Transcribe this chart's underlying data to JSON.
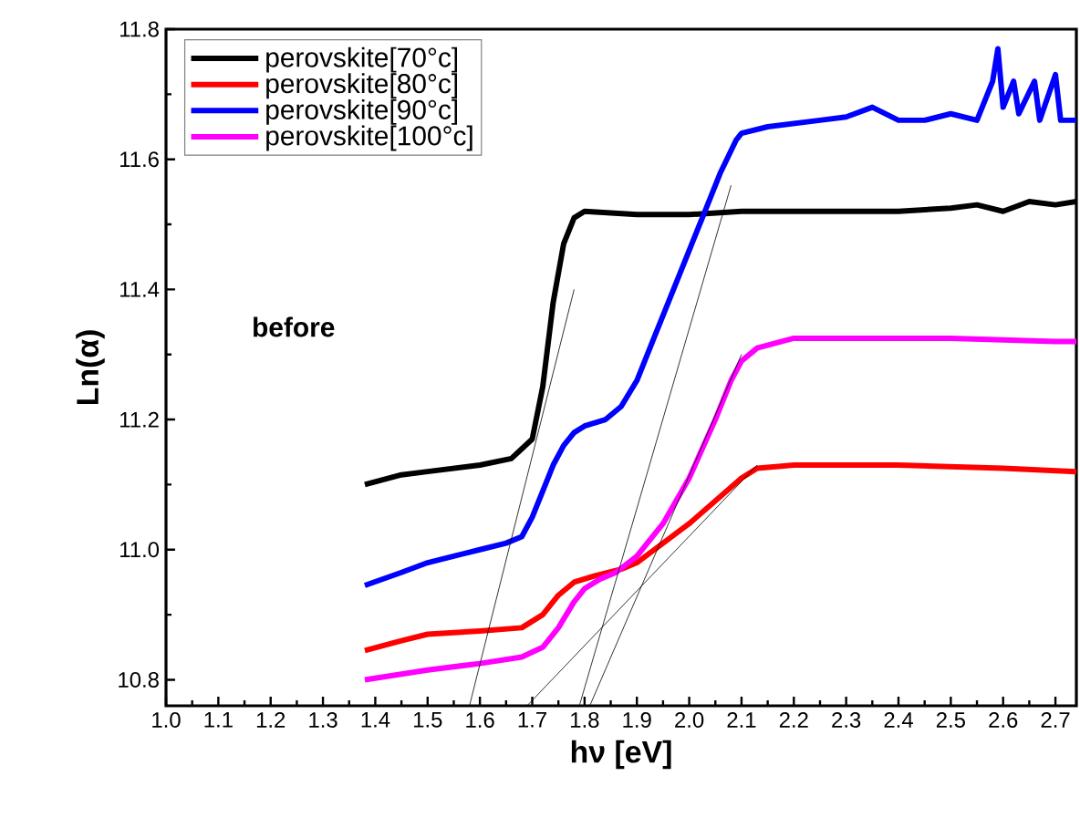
{
  "chart_data": {
    "type": "line",
    "xlabel": "hν [eV]",
    "ylabel": "Ln(α)",
    "annotations": [
      "before"
    ],
    "legend": "top left",
    "marker": "none",
    "grid": false,
    "line_style": "solid",
    "xlim": [
      1.0,
      2.74
    ],
    "ylim": [
      10.76,
      11.8
    ],
    "xticks": [
      {
        "value": 1.0,
        "label": "1.0"
      },
      {
        "value": 1.1,
        "label": "1.1"
      },
      {
        "value": 1.2,
        "label": "1.2"
      },
      {
        "value": 1.3,
        "label": "1.3"
      },
      {
        "value": 1.4,
        "label": "1.4"
      },
      {
        "value": 1.5,
        "label": "1.5"
      },
      {
        "value": 1.6,
        "label": "1.6"
      },
      {
        "value": 1.7,
        "label": "1.7"
      },
      {
        "value": 1.8,
        "label": "1.8"
      },
      {
        "value": 1.9,
        "label": "1.9"
      },
      {
        "value": 2.0,
        "label": "2.0"
      },
      {
        "value": 2.1,
        "label": "2.1"
      },
      {
        "value": 2.2,
        "label": "2.2"
      },
      {
        "value": 2.3,
        "label": "2.3"
      },
      {
        "value": 2.4,
        "label": "2.4"
      },
      {
        "value": 2.5,
        "label": "2.5"
      },
      {
        "value": 2.6,
        "label": "2.6"
      },
      {
        "value": 2.7,
        "label": "2.7"
      }
    ],
    "yticks": [
      {
        "value": 10.8,
        "label": "10.8"
      },
      {
        "value": 11.0,
        "label": "11.0"
      },
      {
        "value": 11.2,
        "label": "11.2"
      },
      {
        "value": 11.4,
        "label": "11.4"
      },
      {
        "value": 11.6,
        "label": "11.6"
      },
      {
        "value": 11.8,
        "label": "11.8"
      }
    ],
    "series": [
      {
        "name": "perovskite[70°c]",
        "color": "#000000",
        "x": [
          1.38,
          1.45,
          1.5,
          1.6,
          1.66,
          1.7,
          1.72,
          1.74,
          1.76,
          1.78,
          1.8,
          1.9,
          2.0,
          2.1,
          2.2,
          2.3,
          2.4,
          2.5,
          2.55,
          2.6,
          2.65,
          2.7,
          2.74
        ],
        "values": [
          11.1,
          11.115,
          11.12,
          11.13,
          11.14,
          11.17,
          11.25,
          11.38,
          11.47,
          11.51,
          11.52,
          11.515,
          11.515,
          11.52,
          11.52,
          11.52,
          11.52,
          11.525,
          11.53,
          11.52,
          11.535,
          11.53,
          11.535
        ]
      },
      {
        "name": "perovskite[80°c]",
        "color": "#ff0000",
        "x": [
          1.38,
          1.45,
          1.5,
          1.6,
          1.68,
          1.72,
          1.75,
          1.78,
          1.82,
          1.87,
          1.9,
          2.0,
          2.1,
          2.13,
          2.2,
          2.4,
          2.6,
          2.74
        ],
        "values": [
          10.845,
          10.86,
          10.87,
          10.875,
          10.88,
          10.9,
          10.93,
          10.95,
          10.96,
          10.97,
          10.98,
          11.04,
          11.11,
          11.125,
          11.13,
          11.13,
          11.125,
          11.12
        ]
      },
      {
        "name": "perovskite[90°c]",
        "color": "#0000ff",
        "x": [
          1.38,
          1.45,
          1.5,
          1.55,
          1.6,
          1.65,
          1.68,
          1.7,
          1.72,
          1.74,
          1.76,
          1.78,
          1.8,
          1.84,
          1.87,
          1.9,
          1.93,
          1.96,
          2.0,
          2.03,
          2.06,
          2.09,
          2.1,
          2.15,
          2.2,
          2.25,
          2.3,
          2.35,
          2.4,
          2.45,
          2.5,
          2.55,
          2.58,
          2.59,
          2.6,
          2.62,
          2.63,
          2.66,
          2.67,
          2.7,
          2.71,
          2.74
        ],
        "values": [
          10.945,
          10.965,
          10.98,
          10.99,
          11.0,
          11.01,
          11.02,
          11.05,
          11.09,
          11.13,
          11.16,
          11.18,
          11.19,
          11.2,
          11.22,
          11.26,
          11.32,
          11.38,
          11.46,
          11.52,
          11.58,
          11.63,
          11.64,
          11.65,
          11.655,
          11.66,
          11.665,
          11.68,
          11.66,
          11.66,
          11.67,
          11.66,
          11.72,
          11.77,
          11.68,
          11.72,
          11.67,
          11.72,
          11.66,
          11.73,
          11.66,
          11.66
        ]
      },
      {
        "name": "perovskite[100°c]",
        "color": "#ff00ff",
        "x": [
          1.38,
          1.5,
          1.6,
          1.68,
          1.72,
          1.75,
          1.78,
          1.8,
          1.83,
          1.86,
          1.9,
          1.95,
          2.0,
          2.05,
          2.08,
          2.1,
          2.13,
          2.2,
          2.3,
          2.5,
          2.7,
          2.74
        ],
        "values": [
          10.8,
          10.815,
          10.825,
          10.835,
          10.85,
          10.88,
          10.92,
          10.94,
          10.955,
          10.965,
          10.99,
          11.04,
          11.11,
          11.2,
          11.26,
          11.29,
          11.31,
          11.325,
          11.325,
          11.325,
          11.32,
          11.32
        ]
      },
      {
        "color": "#000000",
        "x": [
          1.58,
          1.78
        ],
        "values": [
          10.76,
          11.4
        ]
      },
      {
        "color": "#000000",
        "x": [
          1.69,
          2.13
        ],
        "values": [
          10.76,
          11.13
        ]
      },
      {
        "color": "#000000",
        "x": [
          1.79,
          2.08
        ],
        "values": [
          10.76,
          11.56
        ]
      },
      {
        "color": "#000000",
        "x": [
          1.81,
          2.1
        ],
        "values": [
          10.76,
          11.3
        ]
      }
    ]
  }
}
